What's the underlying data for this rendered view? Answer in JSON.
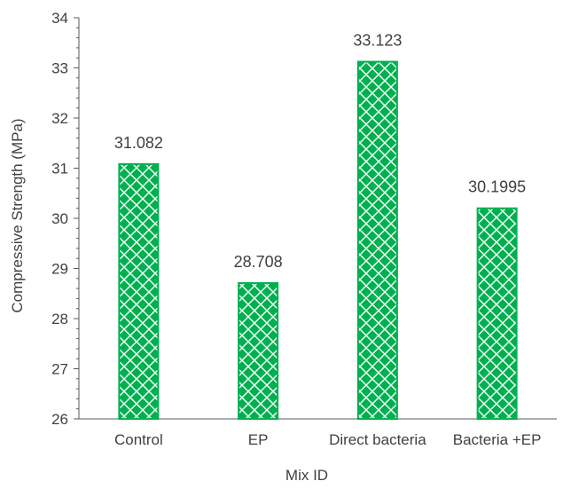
{
  "chart_data": {
    "type": "bar",
    "categories": [
      "Control",
      "EP",
      "Direct bacteria",
      "Bacteria +EP"
    ],
    "values": [
      31.082,
      28.708,
      33.123,
      30.1995
    ],
    "data_labels": [
      "31.082",
      "28.708",
      "33.123",
      "30.1995"
    ],
    "title": "",
    "xlabel": "Mix ID",
    "ylabel": "Compressive Strength (MPa)",
    "ylim": [
      26,
      34
    ],
    "yticks": [
      26,
      27,
      28,
      29,
      30,
      31,
      32,
      33,
      34
    ],
    "grid": false,
    "legend": "none",
    "colors": {
      "bar_pattern": "#00b050",
      "bar_background": "#ffffff",
      "axis": "#595959",
      "text": "#404040"
    }
  }
}
